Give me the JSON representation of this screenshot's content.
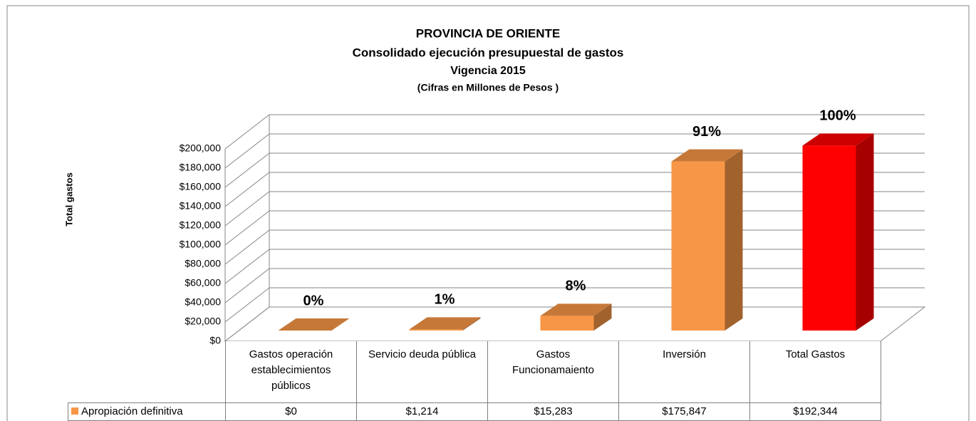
{
  "chart_data": {
    "type": "bar3d",
    "title": "PROVINCIA DE ORIENTE",
    "subtitle": "Consolidado  ejecución presupuestal de gastos",
    "subtitle_2": "Vigencia 2015",
    "note": "(Cifras en Millones de Pesos )",
    "y_label": "Total gastos",
    "categories": [
      "Gastos operación establecimientos públicos",
      "Servicio deuda pública",
      "Gastos Funcionamaiento",
      "Inversión",
      "Total Gastos"
    ],
    "series": [
      {
        "name": "Apropiación definitiva",
        "color": "#f79646",
        "colors": [
          "#f79646",
          "#f79646",
          "#f79646",
          "#f79646",
          "#ff0000"
        ],
        "values": [
          0,
          1214,
          15283,
          175847,
          192344
        ],
        "value_labels": [
          "$0",
          "$1,214",
          "$15,283",
          "$175,847",
          "$192,344"
        ],
        "share_labels": [
          "0%",
          "1%",
          "8%",
          "91%",
          "100%"
        ]
      }
    ],
    "ylim": [
      0,
      200000
    ],
    "yticks": [
      {
        "value": 0,
        "label": "$0"
      },
      {
        "value": 20000,
        "label": "$20,000"
      },
      {
        "value": 40000,
        "label": "$40,000"
      },
      {
        "value": 60000,
        "label": "$60,000"
      },
      {
        "value": 80000,
        "label": "$80,000"
      },
      {
        "value": 100000,
        "label": "$100,000"
      },
      {
        "value": 120000,
        "label": "$120,000"
      },
      {
        "value": 140000,
        "label": "$140,000"
      },
      {
        "value": 160000,
        "label": "$160,000"
      },
      {
        "value": 180000,
        "label": "$180,000"
      },
      {
        "value": 200000,
        "label": "$200,000"
      }
    ],
    "grid": true,
    "data_table": true
  }
}
